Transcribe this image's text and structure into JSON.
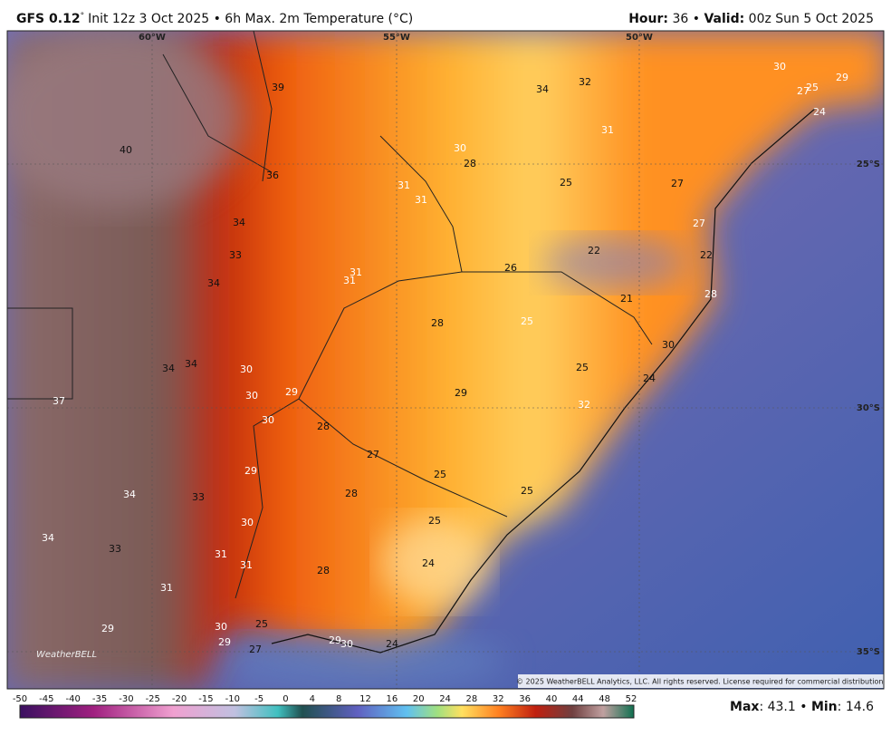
{
  "header": {
    "model": "GFS 0.12",
    "degree": "°",
    "init": "Init 12z 3 Oct 2025 • 6h Max. 2m Temperature (°C)",
    "hour_label": "Hour:",
    "hour": "36 •",
    "valid_label": "Valid:",
    "valid": "00z Sun 5 Oct 2025"
  },
  "map": {
    "longitudes": [
      "60°W",
      "55°W",
      "50°W"
    ],
    "latitudes": [
      "25°S",
      "30°S",
      "35°S"
    ],
    "values": [
      39,
      40,
      36,
      34,
      33,
      34,
      34,
      34,
      30,
      30,
      29,
      30,
      37,
      28,
      27,
      25,
      28,
      29,
      34,
      33,
      30,
      25,
      34,
      33,
      31,
      31,
      28,
      24,
      31,
      29,
      30,
      25,
      29,
      27,
      29,
      30,
      24,
      25,
      32,
      29,
      25,
      24,
      30,
      28,
      25,
      26,
      21,
      22,
      22,
      27,
      25,
      27,
      31,
      31,
      31,
      31,
      30,
      28,
      31,
      34,
      32,
      30,
      27,
      25,
      29,
      24,
      28
    ],
    "logo": "WeatherBELL",
    "copyright": "© 2025 WeatherBELL Analytics, LLC. All rights reserved. License required for commercial distribution."
  },
  "colorbar": {
    "ticks": [
      -50,
      -45,
      -40,
      -35,
      -30,
      -25,
      -20,
      -15,
      -10,
      -5,
      0,
      4,
      8,
      12,
      16,
      20,
      24,
      28,
      32,
      36,
      40,
      44,
      48,
      52
    ]
  },
  "stats": {
    "max_label": "Max",
    "max": 43.1,
    "sep": "•",
    "min_label": "Min",
    "min": 14.6
  }
}
